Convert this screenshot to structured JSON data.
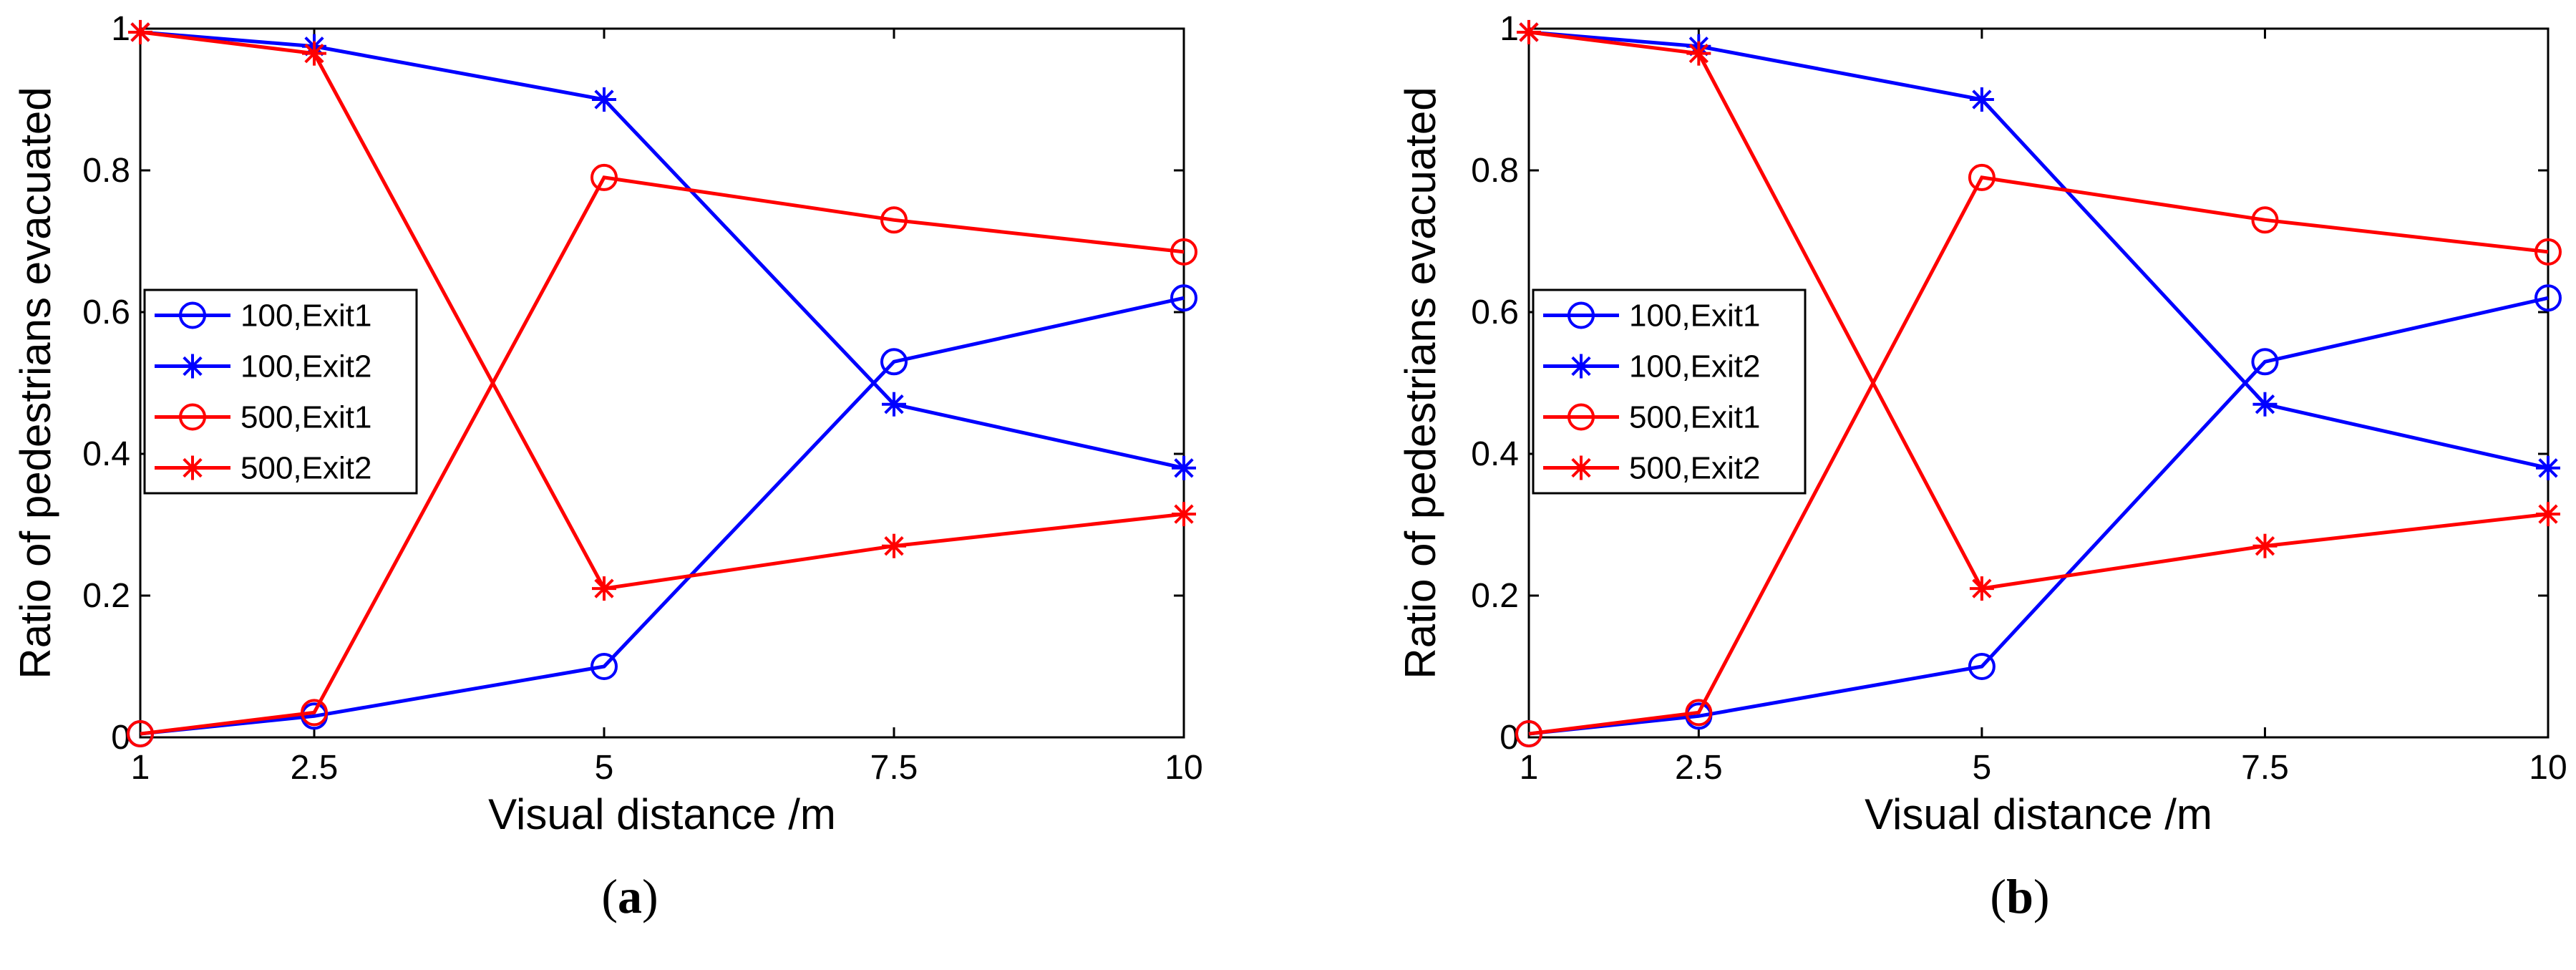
{
  "chart_data": [
    {
      "type": "line",
      "panel_label": "a",
      "x": [
        1,
        2.5,
        5,
        7.5,
        10
      ],
      "x_tick_labels": [
        "1",
        "2.5",
        "5",
        "7.5",
        "10"
      ],
      "y_ticks": [
        0,
        0.2,
        0.4,
        0.6,
        0.8,
        1
      ],
      "y_tick_labels": [
        "0",
        "0.2",
        "0.4",
        "0.6",
        "0.8",
        "1"
      ],
      "xlim": [
        1,
        10
      ],
      "ylim": [
        0,
        1
      ],
      "xlabel": "Visual distance /m",
      "ylabel": "Ratio of pedestrians evacuated",
      "legend_position": "left",
      "series": [
        {
          "name": "100,Exit1",
          "color": "#0000ff",
          "marker": "circle",
          "values": [
            0.005,
            0.03,
            0.1,
            0.53,
            0.62
          ]
        },
        {
          "name": "100,Exit2",
          "color": "#0000ff",
          "marker": "star",
          "values": [
            0.995,
            0.975,
            0.9,
            0.47,
            0.38
          ]
        },
        {
          "name": "500,Exit1",
          "color": "#ff0000",
          "marker": "circle",
          "values": [
            0.005,
            0.035,
            0.79,
            0.73,
            0.685
          ]
        },
        {
          "name": "500,Exit2",
          "color": "#ff0000",
          "marker": "star",
          "values": [
            0.995,
            0.965,
            0.21,
            0.27,
            0.315
          ]
        }
      ]
    },
    {
      "type": "line",
      "panel_label": "b",
      "x": [
        1,
        2.5,
        5,
        7.5,
        10
      ],
      "x_tick_labels": [
        "1",
        "2.5",
        "5",
        "7.5",
        "10"
      ],
      "y_ticks": [
        0,
        0.2,
        0.4,
        0.6,
        0.8,
        1
      ],
      "y_tick_labels": [
        "0",
        "0.2",
        "0.4",
        "0.6",
        "0.8",
        "1"
      ],
      "xlim": [
        1,
        10
      ],
      "ylim": [
        0,
        1
      ],
      "xlabel": "Visual distance /m",
      "ylabel": "Ratio of pedestrians evacuated",
      "legend_position": "left",
      "series": [
        {
          "name": "100,Exit1",
          "color": "#0000ff",
          "marker": "circle",
          "values": [
            0.005,
            0.03,
            0.1,
            0.53,
            0.62
          ]
        },
        {
          "name": "100,Exit2",
          "color": "#0000ff",
          "marker": "star",
          "values": [
            0.995,
            0.975,
            0.9,
            0.47,
            0.38
          ]
        },
        {
          "name": "500,Exit1",
          "color": "#ff0000",
          "marker": "circle",
          "values": [
            0.005,
            0.035,
            0.79,
            0.73,
            0.685
          ]
        },
        {
          "name": "500,Exit2",
          "color": "#ff0000",
          "marker": "star",
          "values": [
            0.995,
            0.965,
            0.21,
            0.27,
            0.315
          ]
        }
      ]
    }
  ]
}
